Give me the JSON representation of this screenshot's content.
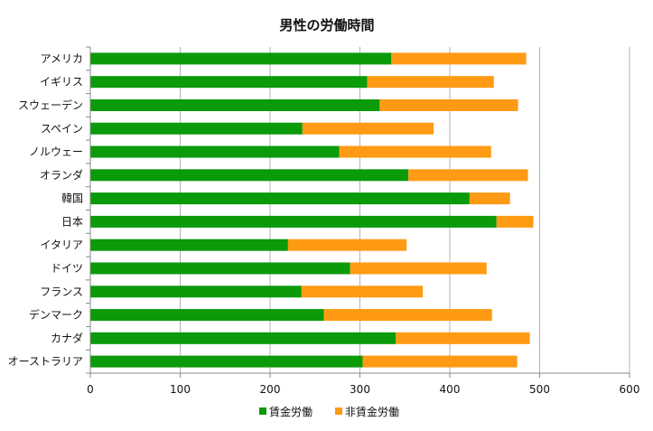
{
  "chart_data": {
    "type": "bar",
    "orientation": "horizontal",
    "stacked": true,
    "title": "男性の労働時間",
    "categories": [
      "アメリカ",
      "イギリス",
      "スウェーデン",
      "スペイン",
      "ノルウェー",
      "オランダ",
      "韓国",
      "日本",
      "イタリア",
      "ドイツ",
      "フランス",
      "デンマーク",
      "カナダ",
      "オーストラリア"
    ],
    "series": [
      {
        "name": "賃金労働",
        "color": "#0a9a0a",
        "values": [
          335,
          308,
          322,
          236,
          277,
          354,
          422,
          452,
          220,
          289,
          235,
          260,
          340,
          303
        ]
      },
      {
        "name": "非賃金労働",
        "color": "#ff9a14",
        "values": [
          150,
          141,
          154,
          146,
          169,
          133,
          45,
          41,
          132,
          152,
          135,
          187,
          149,
          172
        ]
      }
    ],
    "xlim": [
      0,
      600
    ],
    "xticks": [
      0,
      100,
      200,
      300,
      400,
      500,
      600
    ],
    "grid": true,
    "legend_position": "bottom"
  }
}
